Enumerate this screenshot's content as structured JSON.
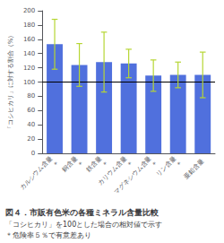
{
  "chart_data": {
    "type": "bar",
    "title": "図４．市販有色米の各種ミネラル含量比較",
    "subtitle": "「コシヒカリ」を100とした場合の相対値で示す",
    "annotations": [
      "＊危険率５％で有意差あり"
    ],
    "ylabel": "「コシヒカリ」に対する割合（%）",
    "categories": [
      "カルシウム含量\n*",
      "銅含量\n*",
      "鉄含量\n*",
      "カリウム含量\n*",
      "マグネシウム含量\n*",
      "リン含量\n*",
      "亜鉛含量"
    ],
    "values": [
      153,
      124,
      128,
      126,
      109,
      110,
      110
    ],
    "error_lower": [
      35,
      30,
      42,
      20,
      22,
      18,
      32
    ],
    "error_upper": [
      35,
      30,
      42,
      20,
      22,
      18,
      32
    ],
    "reference_lines": [
      {
        "value": 100,
        "color": "#000000"
      }
    ],
    "ylim": [
      0,
      200
    ],
    "yticks": [
      0,
      20,
      40,
      60,
      80,
      100,
      120,
      140,
      160,
      180,
      200
    ],
    "grid": false
  }
}
